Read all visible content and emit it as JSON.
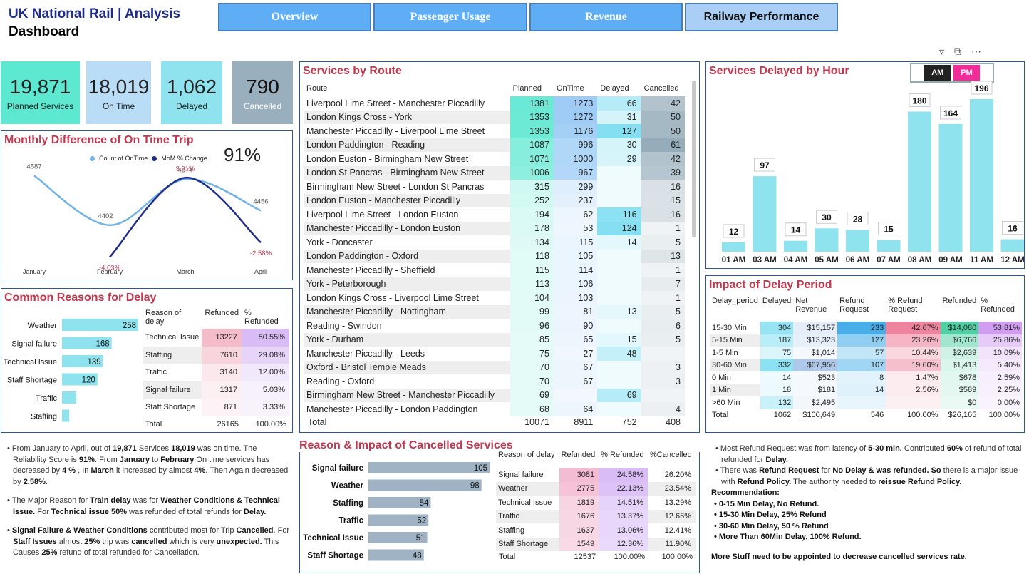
{
  "header": {
    "title": "UK National Rail | Analysis",
    "subtitle": "Dashboard"
  },
  "nav": [
    {
      "label": "Overview",
      "active": false
    },
    {
      "label": "Passenger Usage",
      "active": false
    },
    {
      "label": "Revenue",
      "active": false
    },
    {
      "label": "Railway Performance",
      "active": true
    }
  ],
  "kpis": [
    {
      "value": "19,871",
      "label": "Planned Services",
      "color": "#5de8d2"
    },
    {
      "value": "18,019",
      "label": "On Time",
      "color": "#b9dcf7"
    },
    {
      "value": "1,062",
      "label": "Delayed",
      "color": "#8ee3ee"
    },
    {
      "value": "790",
      "label": "Cancelled",
      "color": "#9aafbd"
    }
  ],
  "colors": {
    "title_red": "#c0384e",
    "navy": "#1f2d8a",
    "bar_cyan": "#8ee3ee",
    "bar_slate": "#9aafbd",
    "bar_grey_blue": "#9fb3c4"
  },
  "monthly": {
    "title": "Monthly Difference of On Time Trip",
    "big_value": "91%",
    "legend": [
      "Count of OnTime",
      "MoM % Change"
    ],
    "chart_data": {
      "type": "line",
      "categories": [
        "January",
        "February",
        "March",
        "April"
      ],
      "series": [
        {
          "name": "Count of OnTime",
          "values": [
            4587,
            4402,
            4574,
            4456
          ],
          "color": "#6fb3e8"
        },
        {
          "name": "MoM % Change",
          "values": [
            null,
            -4.03,
            3.91,
            -2.58
          ],
          "color": "#1f2d8a"
        }
      ],
      "count_labels": [
        "4587",
        "4402",
        "4574",
        "4456"
      ],
      "pct_labels": [
        "",
        "-4.03%",
        "3.91%",
        "-2.58%"
      ]
    }
  },
  "delay_reasons": {
    "title": "Common Reasons for Delay",
    "chart_data": {
      "type": "bar",
      "categories": [
        "Weather",
        "Signal failure",
        "Technical Issue",
        "Staff Shortage",
        "Traffic",
        "Staffing"
      ],
      "values": [
        258,
        168,
        139,
        120,
        null,
        null
      ]
    },
    "value_labels": [
      "258",
      "168",
      "139",
      "120",
      "",
      ""
    ],
    "table": {
      "headers": [
        "Reason of delay",
        "Refunded",
        "% Refunded"
      ],
      "rows": [
        [
          "Technical Issue",
          "13227",
          "50.55%"
        ],
        [
          "Staffing",
          "7610",
          "29.08%"
        ],
        [
          "Traffic",
          "3140",
          "12.00%"
        ],
        [
          "Signal failure",
          "1317",
          "5.03%"
        ],
        [
          "Staff Shortage",
          "871",
          "3.33%"
        ]
      ],
      "total": [
        "Total",
        "26165",
        "100.00%"
      ]
    }
  },
  "routes": {
    "title": "Services by Route",
    "headers": [
      "Route",
      "Planned",
      "OnTime",
      "Delayed",
      "Cancelled"
    ],
    "rows": [
      [
        "Liverpool Lime Street - Manchester Piccadilly",
        "1381",
        "1273",
        "66",
        "42"
      ],
      [
        "London Kings Cross - York",
        "1353",
        "1272",
        "31",
        "50"
      ],
      [
        "Manchester Piccadilly - Liverpool Lime Street",
        "1353",
        "1176",
        "127",
        "50"
      ],
      [
        "London Paddington - Reading",
        "1087",
        "996",
        "30",
        "61"
      ],
      [
        "London Euston - Birmingham New Street",
        "1071",
        "1000",
        "29",
        "42"
      ],
      [
        "London St Pancras - Birmingham New Street",
        "1006",
        "967",
        "",
        "39"
      ],
      [
        "Birmingham New Street - London St Pancras",
        "315",
        "299",
        "",
        "16"
      ],
      [
        "London Euston - Manchester Piccadilly",
        "252",
        "237",
        "",
        "15"
      ],
      [
        "Liverpool Lime Street - London Euston",
        "194",
        "62",
        "116",
        "16"
      ],
      [
        "Manchester Piccadilly - London Euston",
        "178",
        "53",
        "124",
        "1"
      ],
      [
        "York - Doncaster",
        "134",
        "115",
        "14",
        "5"
      ],
      [
        "London Paddington - Oxford",
        "118",
        "105",
        "",
        "13"
      ],
      [
        "Manchester Piccadilly - Sheffield",
        "115",
        "114",
        "",
        "1"
      ],
      [
        "York - Peterborough",
        "113",
        "106",
        "",
        "7"
      ],
      [
        "London Kings Cross - Liverpool Lime Street",
        "104",
        "103",
        "",
        "1"
      ],
      [
        "Manchester Piccadilly - Nottingham",
        "99",
        "81",
        "13",
        "5"
      ],
      [
        "Reading - Swindon",
        "96",
        "90",
        "",
        "6"
      ],
      [
        "York - Durham",
        "85",
        "65",
        "15",
        "5"
      ],
      [
        "Manchester Piccadilly - Leeds",
        "75",
        "27",
        "48",
        ""
      ],
      [
        "Oxford - Bristol Temple Meads",
        "70",
        "67",
        "",
        "3"
      ],
      [
        "Reading - Oxford",
        "70",
        "67",
        "",
        "3"
      ],
      [
        "Birmingham New Street - Manchester Piccadilly",
        "69",
        "",
        "69",
        ""
      ],
      [
        "Manchester Piccadilly - London Paddington",
        "68",
        "64",
        "",
        "4"
      ]
    ],
    "total": [
      "Total",
      "10071",
      "8911",
      "752",
      "408"
    ]
  },
  "hourly": {
    "title": "Services Delayed by Hour",
    "toggle": [
      "AM",
      "PM"
    ],
    "toolbar_icons": [
      "filter-icon",
      "focus-mode-icon",
      "more-options-icon"
    ],
    "chart_data": {
      "type": "bar",
      "categories": [
        "01 AM",
        "03 AM",
        "04 AM",
        "05 AM",
        "06 AM",
        "07 AM",
        "08 AM",
        "09 AM",
        "11 AM",
        "12 AM"
      ],
      "values": [
        12,
        97,
        14,
        30,
        28,
        15,
        180,
        164,
        196,
        16
      ]
    }
  },
  "impact": {
    "title": "Impact of Delay Period",
    "headers": [
      "Delay_period",
      "Delayed",
      "Net Revenue",
      "Refund Request",
      "% Refund Request",
      "Refunded",
      "% Refunded"
    ],
    "rows": [
      [
        "15-30 Min",
        "304",
        "$15,157",
        "233",
        "42.67%",
        "$14,080",
        "53.81%"
      ],
      [
        "5-15 Min",
        "187",
        "$13,323",
        "127",
        "23.26%",
        "$6,766",
        "25.86%"
      ],
      [
        "1-5 Min",
        "75",
        "$1,014",
        "57",
        "10.44%",
        "$2,639",
        "10.09%"
      ],
      [
        "30-60 Min",
        "332",
        "$67,956",
        "107",
        "19.60%",
        "$1,413",
        "5.40%"
      ],
      [
        "0 Min",
        "14",
        "$523",
        "8",
        "1.47%",
        "$678",
        "2.59%"
      ],
      [
        "1 Min",
        "18",
        "$181",
        "14",
        "2.56%",
        "$589",
        "2.25%"
      ],
      [
        ">60 Min",
        "132",
        "$2,495",
        "",
        "",
        "$0",
        "0.00%"
      ]
    ],
    "total": [
      "Total",
      "1062",
      "$100,649",
      "546",
      "100.00%",
      "$26,165",
      "100.00%"
    ]
  },
  "cancel": {
    "title": "Reason & Impact of Cancelled Services",
    "chart_data": {
      "type": "bar",
      "categories": [
        "Signal failure",
        "Weather",
        "Staffing",
        "Traffic",
        "Technical Issue",
        "Staff Shortage"
      ],
      "values": [
        105,
        98,
        54,
        52,
        51,
        48
      ]
    },
    "table": {
      "headers": [
        "Reason of delay",
        "Refunded",
        "% Refunded",
        "%Cancelled"
      ],
      "rows": [
        [
          "Signal failure",
          "3081",
          "24.58%",
          "26.20%"
        ],
        [
          "Weather",
          "2775",
          "22.13%",
          "23.54%"
        ],
        [
          "Technical Issue",
          "1819",
          "14.51%",
          "13.29%"
        ],
        [
          "Traffic",
          "1676",
          "13.37%",
          "12.66%"
        ],
        [
          "Staffing",
          "1637",
          "13.06%",
          "12.41%"
        ],
        [
          "Staff Shortage",
          "1549",
          "12.36%",
          "11.90%"
        ]
      ],
      "total": [
        "Total",
        "12537",
        "100.00%",
        "100.00%"
      ]
    }
  },
  "notes_left": [
    {
      "html": "From January to April, out of <b>19,871</b> Services <b>18,019</b> was on time. The Reliability Score is <b>91%</b>. From <b>January</b> to <b>February</b> On time services has decreased by <span class='red'><b>4 %</b></span> , In <b>March</b> it increased by almost <span class='green'><b>4%</b></span>. Then Again decreased by <span class='red'><b>2.58%</b></span>."
    },
    {
      "html": "The Major Reason for <b>Train delay</b> was for <b>Weather Conditions &amp; Technical Issue.</b> For <b>Technical issue 50%</b> was refunded of total refunds for <b>Delay.</b>"
    },
    {
      "html": "<b>Signal Failure &amp; Weather Conditions</b> contributed most for Trip <b>Cancelled</b>. For <b>Staff Issues</b> almost <b>25%</b> trip was <b>cancelled</b> which is very <b>unexpected.</b> This Causes <b>25%</b> refund of total refunded for Cancellation."
    }
  ],
  "notes_right": {
    "bullets": [
      "Most Refund Request was from latency of <b>5-30 min.</b> Contributed <b>60%</b> of refund of total refunded for <b>Delay.</b>",
      "There was <b>Refund Request</b> for <b>No Delay &amp; was refunded. So</b> there is a major issue with <b>Refund Policy.</b> The authority needed to <b>reissue Refund Policy.</b>"
    ],
    "rec_title": "Recommendation:",
    "recs": [
      "0-15 Min Delay, No Refund.",
      "15-30 Min Delay, 25% Refund",
      "30-60 Min Delay, 50 % Refund",
      "More Than 60Min Delay, 100% Refund."
    ],
    "footer": "More Stuff need to be appointed to decrease cancelled services rate."
  }
}
